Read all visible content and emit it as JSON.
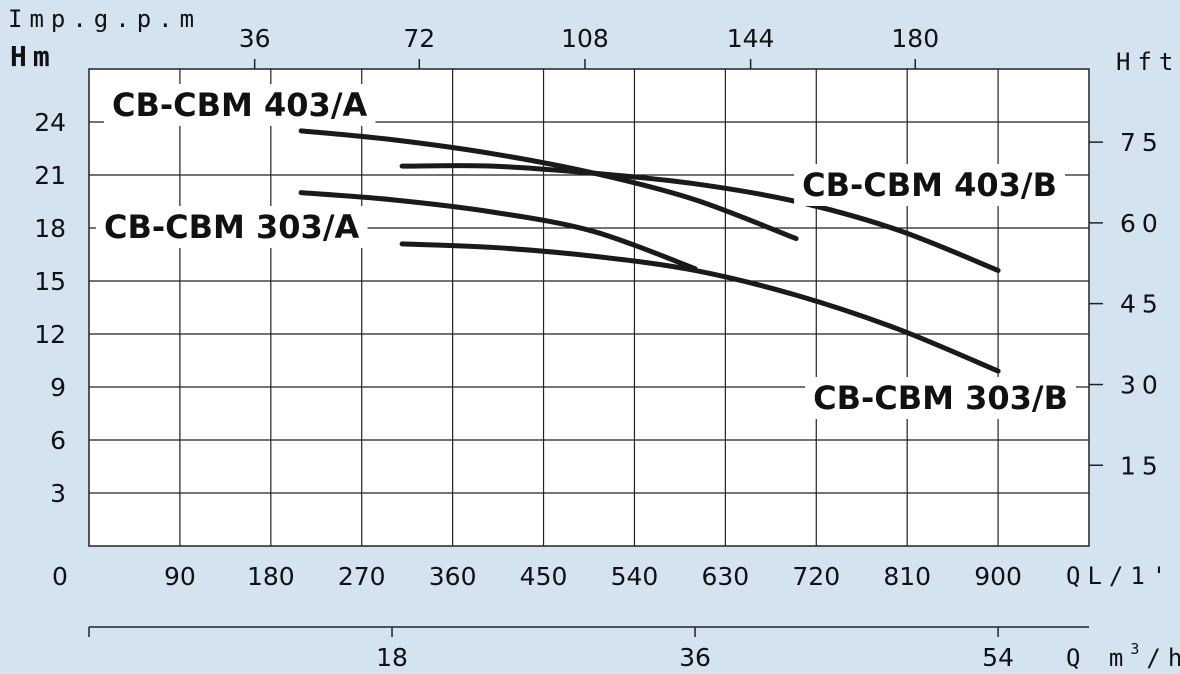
{
  "chart_data": {
    "type": "line",
    "title": "",
    "units": {
      "top_flow": "Imp.g.p.m",
      "left_head": "Hm",
      "right_head": "Hft",
      "bottom_flow": "QL/1'",
      "bottom_flow2_prefix": "Q m",
      "bottom_flow2_sup": "3",
      "bottom_flow2_suffix": "/h"
    },
    "x": {
      "min": 0,
      "max": 990,
      "ticks": [
        "90",
        "180",
        "270",
        "360",
        "450",
        "540",
        "630",
        "720",
        "810",
        "900"
      ],
      "origin_label": "0"
    },
    "y": {
      "min": 0,
      "max": 27,
      "ticks": [
        "3",
        "6",
        "9",
        "12",
        "15",
        "18",
        "21",
        "24"
      ],
      "origin_label": "0"
    },
    "top_axis": {
      "ticks": [
        "36",
        "72",
        "108",
        "144",
        "180"
      ],
      "at_x": [
        164,
        327,
        491,
        655,
        818
      ]
    },
    "right_axis": {
      "ticks": [
        "15",
        "30",
        "45",
        "60",
        "75"
      ],
      "at_y": [
        4.57,
        9.14,
        13.72,
        18.29,
        22.86
      ]
    },
    "bottom_axis2": {
      "ticks": [
        "18",
        "36",
        "54"
      ],
      "at_x": [
        300,
        600,
        900
      ]
    },
    "grid": true,
    "series": [
      {
        "name": "CB-CBM 403/A",
        "x": [
          210,
          300,
          400,
          500,
          600,
          700
        ],
        "y": [
          23.5,
          23.0,
          22.2,
          21.1,
          19.6,
          17.4
        ]
      },
      {
        "name": "CB-CBM 403/B",
        "x": [
          310,
          400,
          500,
          600,
          700,
          800,
          900
        ],
        "y": [
          21.5,
          21.5,
          21.1,
          20.5,
          19.5,
          17.9,
          15.6
        ]
      },
      {
        "name": "CB-CBM 303/A",
        "x": [
          210,
          300,
          400,
          500,
          600
        ],
        "y": [
          20.0,
          19.6,
          18.9,
          17.8,
          15.7
        ]
      },
      {
        "name": "CB-CBM 303/B",
        "x": [
          310,
          400,
          500,
          600,
          700,
          800,
          900
        ],
        "y": [
          17.1,
          16.9,
          16.4,
          15.6,
          14.2,
          12.3,
          9.9
        ]
      }
    ]
  }
}
